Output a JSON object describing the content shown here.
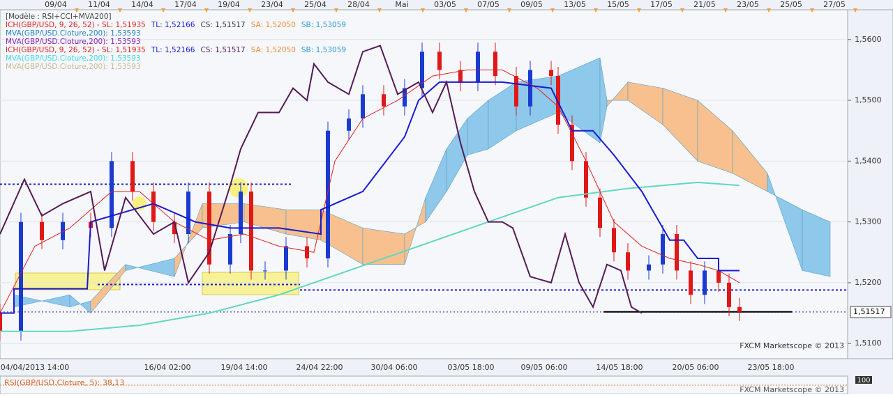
{
  "chart_data": {
    "type": "candlestick",
    "legend": [
      [
        {
          "text": "[Modèle : RSI+CCI+MVA200]",
          "color": "#444444"
        }
      ],
      [
        {
          "text": "ICH(GBP/USD, 9, 26, 52) -  SL: 1,51935",
          "color": "#e02020"
        },
        {
          "text": "TL: 1,52166",
          "color": "#1a1ad0"
        },
        {
          "text": "CS: 1,51517",
          "color": "#333333"
        },
        {
          "text": "SA: 1,52050",
          "color": "#f08a30"
        },
        {
          "text": "SB: 1,53059",
          "color": "#2a9ad8"
        }
      ],
      [
        {
          "text": "MVA(GBP/USD.Cloture,200): 1,53593",
          "color": "#2a80c0"
        }
      ],
      [
        {
          "text": "MVA(GBP/USD.Cloture,200): 1,53593",
          "color": "#8a20b0"
        }
      ],
      [
        {
          "text": "ICH(GBP/USD, 9, 26, 52) -  SL: 1,51935",
          "color": "#e02020"
        },
        {
          "text": "TL: 1,52166",
          "color": "#1a1ad0"
        },
        {
          "text": "CS: 1,51517",
          "color": "#551a55"
        },
        {
          "text": "SA: 1,52050",
          "color": "#f08a30"
        },
        {
          "text": "SB: 1,53059",
          "color": "#2a9ad8"
        }
      ],
      [
        {
          "text": "MVA(GBP/USD.Cloture,200): 1,53593",
          "color": "#40d8e8"
        }
      ],
      [
        {
          "text": "MVA(GBP/USD.Cloture,200): 1,53593",
          "color": "#c8b890"
        }
      ]
    ],
    "top_labels": [
      "09/04",
      "11/04",
      "14/04",
      "17/04",
      "19/04",
      "23/04",
      "25/04",
      "28/04",
      "Mai",
      "03/05",
      "07/05",
      "09/05",
      "13/05",
      "15/05",
      "17/05",
      "21/05",
      "23/05",
      "25/05",
      "27/05"
    ],
    "bottom_labels": [
      "04/04/2013 14:00",
      "16/04 02:00",
      "19/04 14:00",
      "24/04 22:00",
      "30/04 06:00",
      "03/05 18:00",
      "09/05 06:00",
      "14/05 18:00",
      "20/05 06:00",
      "23/05 18:00"
    ],
    "watermark": "FXCM Marketscope © 2013",
    "osc_label": "RSI(GBP/USD.Cloture, 5): 38,13",
    "osc_top": "100",
    "last_price": {
      "value": 1.51517,
      "label": "1,51517"
    },
    "xlim": [
      0,
      121.5
    ],
    "ylim": [
      1.5075,
      1.5649
    ],
    "yticks": [
      {
        "value": 1.51,
        "label": "1,5100"
      },
      {
        "value": 1.52,
        "label": "1,5200"
      },
      {
        "value": 1.53,
        "label": "1,5300"
      },
      {
        "value": 1.54,
        "label": "1,5400"
      },
      {
        "value": 1.55,
        "label": "1,5500"
      },
      {
        "value": 1.56,
        "label": "1,5600"
      }
    ],
    "candles": {
      "x": [
        0,
        3,
        6,
        9,
        13,
        16,
        19,
        22,
        25,
        27,
        30,
        33,
        34.5,
        36,
        38,
        41,
        44,
        47,
        50,
        52,
        55,
        58,
        60.5,
        63,
        66,
        68.5,
        71,
        74,
        76,
        79,
        80,
        82,
        84,
        86,
        88,
        90,
        93,
        95,
        97,
        99,
        101,
        103,
        104.5,
        106
      ],
      "open": [
        1.515,
        1.512,
        1.53,
        1.527,
        1.53,
        1.529,
        1.54,
        1.535,
        1.53,
        1.528,
        1.535,
        1.523,
        1.528,
        1.535,
        1.522,
        1.522,
        1.526,
        1.524,
        1.545,
        1.547,
        1.551,
        1.549,
        1.552,
        1.558,
        1.555,
        1.553,
        1.558,
        1.554,
        1.549,
        1.555,
        1.554,
        1.546,
        1.54,
        1.534,
        1.529,
        1.525,
        1.522,
        1.523,
        1.528,
        1.522,
        1.518,
        1.522,
        1.52,
        1.516
      ],
      "close": [
        1.512,
        1.53,
        1.527,
        1.53,
        1.529,
        1.54,
        1.535,
        1.53,
        1.528,
        1.535,
        1.523,
        1.528,
        1.535,
        1.522,
        1.522,
        1.526,
        1.524,
        1.545,
        1.547,
        1.551,
        1.549,
        1.552,
        1.558,
        1.555,
        1.553,
        1.558,
        1.554,
        1.549,
        1.555,
        1.554,
        1.546,
        1.54,
        1.534,
        1.529,
        1.525,
        1.522,
        1.523,
        1.528,
        1.522,
        1.518,
        1.522,
        1.52,
        1.516,
        1.5152
      ],
      "high": [
        1.5165,
        1.5315,
        1.5315,
        1.5315,
        1.5315,
        1.5415,
        1.5415,
        1.5365,
        1.5315,
        1.5365,
        1.5365,
        1.5295,
        1.5365,
        1.5365,
        1.5235,
        1.5275,
        1.5275,
        1.5465,
        1.5485,
        1.5525,
        1.5525,
        1.5535,
        1.5595,
        1.5595,
        1.5565,
        1.5595,
        1.5595,
        1.5555,
        1.5565,
        1.5565,
        1.5555,
        1.5475,
        1.5415,
        1.5355,
        1.5305,
        1.5265,
        1.5245,
        1.5295,
        1.5295,
        1.5235,
        1.5235,
        1.5235,
        1.5215,
        1.5175
      ],
      "low": [
        1.5105,
        1.5105,
        1.5255,
        1.5255,
        1.5275,
        1.5275,
        1.5335,
        1.5285,
        1.5265,
        1.5265,
        1.5215,
        1.5215,
        1.5265,
        1.5205,
        1.5205,
        1.5205,
        1.5225,
        1.5225,
        1.5435,
        1.5455,
        1.5475,
        1.5475,
        1.5505,
        1.5535,
        1.5515,
        1.5515,
        1.5525,
        1.5475,
        1.5475,
        1.5525,
        1.5445,
        1.5385,
        1.5325,
        1.5275,
        1.5235,
        1.5205,
        1.5205,
        1.5215,
        1.5205,
        1.5165,
        1.5165,
        1.5185,
        1.5145,
        1.5137
      ],
      "up_color": "#1a3ad0",
      "down_color": "#e01818"
    },
    "cloud": {
      "x": [
        2,
        10,
        13,
        18,
        25,
        29,
        35,
        41,
        46,
        52,
        58,
        61,
        64,
        67,
        70,
        74,
        80,
        86,
        87,
        90,
        95,
        100,
        105,
        110,
        115,
        119
      ],
      "a": [
        1.516,
        1.518,
        1.515,
        1.522,
        1.524,
        1.529,
        1.53,
        1.528,
        1.527,
        1.523,
        1.523,
        1.534,
        1.542,
        1.547,
        1.55,
        1.553,
        1.554,
        1.557,
        1.55,
        1.55,
        1.546,
        1.54,
        1.538,
        1.535,
        1.532,
        1.53
      ],
      "b": [
        1.518,
        1.516,
        1.517,
        1.523,
        1.521,
        1.533,
        1.533,
        1.532,
        1.532,
        1.529,
        1.528,
        1.53,
        1.535,
        1.541,
        1.542,
        1.545,
        1.548,
        1.543,
        1.549,
        1.553,
        1.552,
        1.55,
        1.545,
        1.538,
        1.522,
        1.521
      ],
      "up_color": "#8ec8ea",
      "down_color": "#f7c08e"
    },
    "lines": [
      {
        "color": "#60d8c0",
        "width": 2,
        "x": [
          0,
          10,
          20,
          30,
          40,
          50,
          60,
          70,
          80,
          90,
          100,
          106
        ],
        "y": [
          1.512,
          1.512,
          1.513,
          1.515,
          1.518,
          1.522,
          1.526,
          1.53,
          1.534,
          1.5355,
          1.5365,
          1.536
        ]
      },
      {
        "color": "#e02020",
        "width": 1,
        "x": [
          0,
          5,
          10,
          16,
          20,
          25,
          30,
          35,
          40,
          45,
          48,
          52,
          57,
          62,
          67,
          72,
          77,
          80,
          84,
          88,
          92,
          96,
          100,
          103,
          106
        ],
        "y": [
          1.515,
          1.526,
          1.529,
          1.535,
          1.535,
          1.53,
          1.527,
          1.528,
          1.526,
          1.525,
          1.54,
          1.547,
          1.55,
          1.554,
          1.555,
          1.555,
          1.552,
          1.549,
          1.54,
          1.53,
          1.526,
          1.524,
          1.523,
          1.522,
          1.52
        ]
      },
      {
        "color": "#1a1ad0",
        "width": 2,
        "x": [
          0,
          2,
          2,
          12.5,
          13,
          22,
          28,
          33,
          40,
          46,
          46,
          52,
          58,
          60,
          63,
          66,
          72,
          79,
          82,
          85,
          88,
          92,
          95,
          96,
          98,
          100,
          103,
          103,
          106
        ],
        "y": [
          1.515,
          1.515,
          1.519,
          1.519,
          1.53,
          1.533,
          1.53,
          1.529,
          1.529,
          1.528,
          1.532,
          1.535,
          1.544,
          1.55,
          1.553,
          1.553,
          1.553,
          1.552,
          1.545,
          1.545,
          1.541,
          1.535,
          1.529,
          1.527,
          1.527,
          1.524,
          1.524,
          1.522,
          1.522
        ]
      },
      {
        "color": "#551a55",
        "width": 2,
        "x": [
          0,
          3.5,
          6,
          9,
          13,
          15,
          18,
          22,
          25,
          27,
          30,
          33,
          34.5,
          37,
          40,
          42,
          44,
          45,
          47,
          50,
          52,
          54.5,
          57,
          60,
          62,
          64,
          66,
          68,
          70,
          72,
          73.5,
          76,
          79,
          81,
          83,
          85,
          87,
          89,
          90.5,
          92
        ],
        "y": [
          1.528,
          1.537,
          1.531,
          1.533,
          1.535,
          1.522,
          1.534,
          1.528,
          1.53,
          1.52,
          1.525,
          1.536,
          1.542,
          1.548,
          1.548,
          1.552,
          1.55,
          1.556,
          1.553,
          1.551,
          1.558,
          1.559,
          1.551,
          1.553,
          1.548,
          1.553,
          1.543,
          1.535,
          1.53,
          1.53,
          1.529,
          1.521,
          1.52,
          1.528,
          1.52,
          1.516,
          1.523,
          1.522,
          1.516,
          1.515
        ]
      }
    ],
    "levels": [
      {
        "value": 1.5362,
        "x": [
          0,
          42
        ],
        "color": "#2020c0",
        "dash": "3 3"
      },
      {
        "value": 1.5197,
        "x": [
          14,
          43
        ],
        "color": "#2020c0",
        "dash": "3 3"
      },
      {
        "value": 1.5188,
        "x": [
          43,
          121.5
        ],
        "color": "#2020c0",
        "dash": "3 3"
      },
      {
        "value": 1.5152,
        "x": [
          0,
          121.5
        ],
        "color": "#8080d0",
        "dash": "2 3"
      },
      {
        "value": 1.5152,
        "x": [
          86.5,
          113.5
        ],
        "color": "#000000",
        "dash": "none"
      }
    ]
  }
}
